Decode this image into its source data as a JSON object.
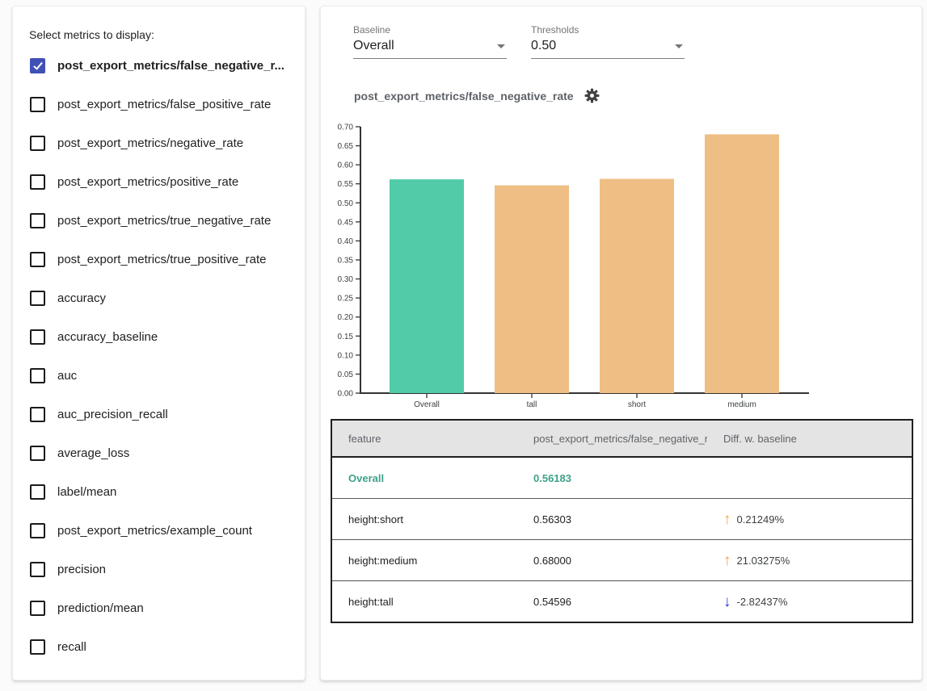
{
  "sidebar": {
    "title": "Select metrics to display:",
    "metrics": [
      {
        "label": "post_export_metrics/false_negative_r...",
        "checked": true
      },
      {
        "label": "post_export_metrics/false_positive_rate",
        "checked": false
      },
      {
        "label": "post_export_metrics/negative_rate",
        "checked": false
      },
      {
        "label": "post_export_metrics/positive_rate",
        "checked": false
      },
      {
        "label": "post_export_metrics/true_negative_rate",
        "checked": false
      },
      {
        "label": "post_export_metrics/true_positive_rate",
        "checked": false
      },
      {
        "label": "accuracy",
        "checked": false
      },
      {
        "label": "accuracy_baseline",
        "checked": false
      },
      {
        "label": "auc",
        "checked": false
      },
      {
        "label": "auc_precision_recall",
        "checked": false
      },
      {
        "label": "average_loss",
        "checked": false
      },
      {
        "label": "label/mean",
        "checked": false
      },
      {
        "label": "post_export_metrics/example_count",
        "checked": false
      },
      {
        "label": "precision",
        "checked": false
      },
      {
        "label": "prediction/mean",
        "checked": false
      },
      {
        "label": "recall",
        "checked": false
      }
    ]
  },
  "controls": {
    "baseline": {
      "label": "Baseline",
      "value": "Overall"
    },
    "thresholds": {
      "label": "Thresholds",
      "value": "0.50"
    }
  },
  "chart_data": {
    "type": "bar",
    "title": "post_export_metrics/false_negative_rate",
    "categories": [
      "Overall",
      "tall",
      "short",
      "medium"
    ],
    "values": [
      0.56183,
      0.54596,
      0.56303,
      0.68
    ],
    "bar_colors": [
      "#52cba9",
      "#efbe84",
      "#efbe84",
      "#efbe84"
    ],
    "xlabel": "",
    "ylabel": "",
    "ylim": [
      0,
      0.7
    ],
    "ytick_step": 0.05,
    "grid": false,
    "legend": "none"
  },
  "table": {
    "columns": [
      "feature",
      "post_export_metrics/false_negative_rat...",
      "Diff. w. baseline"
    ],
    "rows": [
      {
        "feature": "Overall",
        "value": "0.56183",
        "diff": "",
        "direction": "none",
        "baseline": true
      },
      {
        "feature": "height:short",
        "value": "0.56303",
        "diff": "0.21249%",
        "direction": "up",
        "baseline": false
      },
      {
        "feature": "height:medium",
        "value": "0.68000",
        "diff": "21.03275%",
        "direction": "up",
        "baseline": false
      },
      {
        "feature": "height:tall",
        "value": "0.54596",
        "diff": "-2.82437%",
        "direction": "down",
        "baseline": false
      }
    ]
  },
  "colors": {
    "checkbox_checked": "#3f51b5",
    "baseline_bar": "#52cba9",
    "slice_bar": "#efbe84",
    "baseline_text": "#3fa089",
    "arrow_up": "#f2a33c",
    "arrow_down": "#2438e3",
    "axis": "#333333",
    "table_header_bg": "#e4e4e4"
  }
}
